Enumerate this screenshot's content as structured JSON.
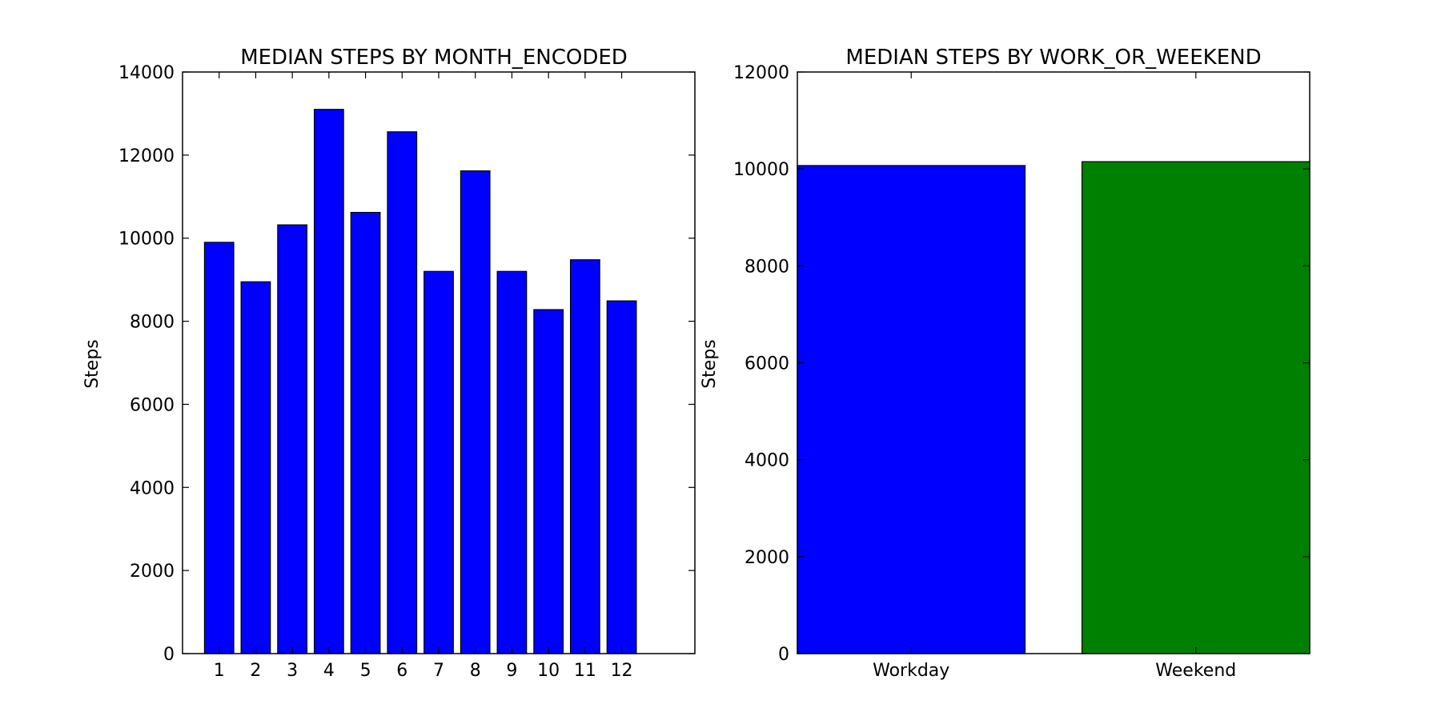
{
  "chart_data": [
    {
      "type": "bar",
      "title": "MEDIAN STEPS BY MONTH_ENCODED",
      "xlabel": "",
      "ylabel": "Steps",
      "categories": [
        "1",
        "2",
        "3",
        "4",
        "5",
        "6",
        "7",
        "8",
        "9",
        "10",
        "11",
        "12"
      ],
      "values": [
        9900,
        8950,
        10320,
        13100,
        10620,
        12560,
        9200,
        11620,
        9200,
        8280,
        9480,
        8490
      ],
      "ylim": [
        0,
        14000
      ],
      "yticks": [
        0,
        2000,
        4000,
        6000,
        8000,
        10000,
        12000,
        14000
      ],
      "bar_color": "#0000ff",
      "grid": false
    },
    {
      "type": "bar",
      "title": "MEDIAN STEPS BY WORK_OR_WEEKEND",
      "xlabel": "",
      "ylabel": "Steps",
      "categories": [
        "Workday",
        "Weekend"
      ],
      "values": [
        10070,
        10150
      ],
      "ylim": [
        0,
        12000
      ],
      "yticks": [
        0,
        2000,
        4000,
        6000,
        8000,
        10000,
        12000
      ],
      "bar_colors": [
        "#0000ff",
        "#008000"
      ],
      "grid": false
    }
  ]
}
